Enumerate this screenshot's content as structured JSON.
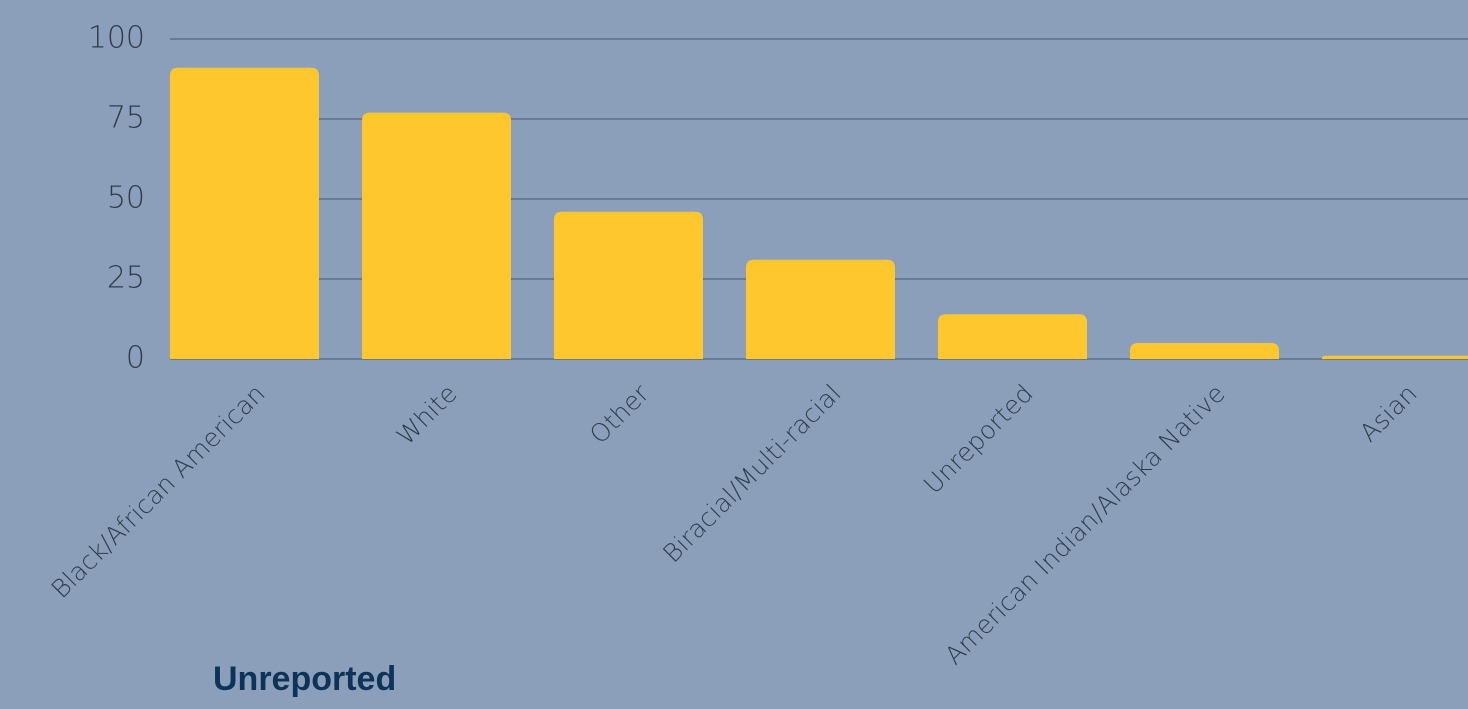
{
  "chart_data": {
    "type": "bar",
    "categories": [
      "Black/African American",
      "White",
      "Other",
      "Biracial/Multi-racial",
      "Unreported",
      "American Indian/Alaska Native",
      "Asian"
    ],
    "values": [
      91,
      77,
      46,
      31,
      14,
      5,
      1
    ],
    "color": "#fec72e",
    "ylim": [
      0,
      100
    ],
    "yticks": [
      0,
      25,
      50,
      75,
      100
    ],
    "grid": true,
    "annotation": "Unreported"
  }
}
